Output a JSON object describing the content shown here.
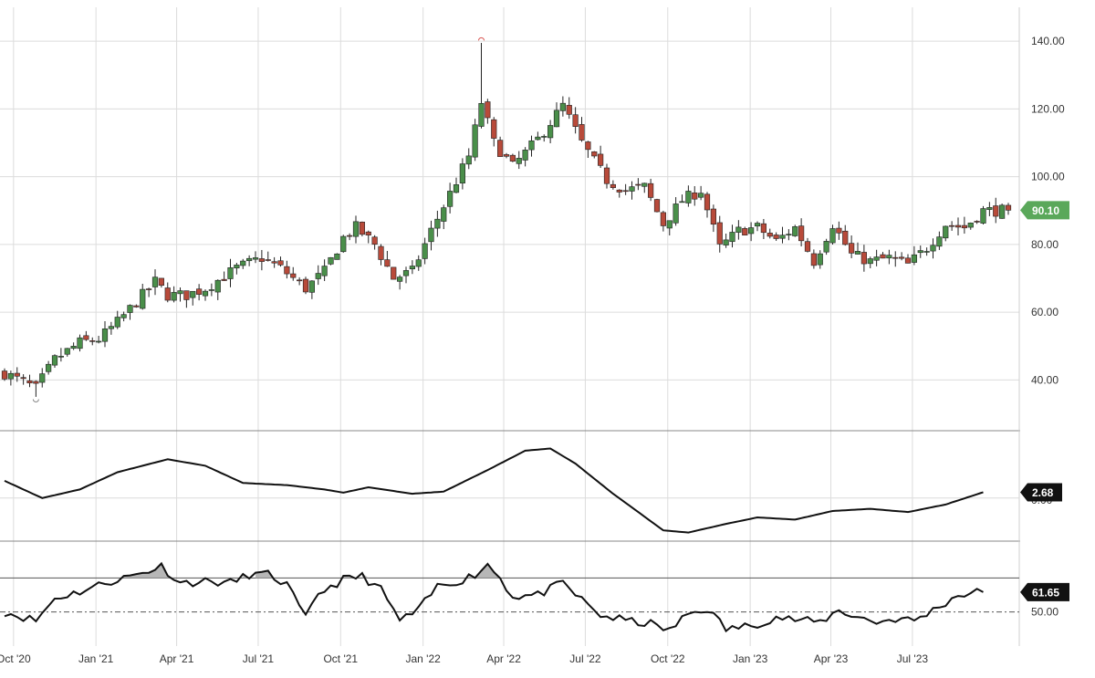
{
  "chart_data": [
    {
      "panel": "price",
      "type": "candlestick",
      "title": "",
      "xlabel": "",
      "ylabel": "",
      "ylim": [
        25,
        150
      ],
      "yticks": [
        40,
        60,
        80,
        100,
        120,
        140
      ],
      "ytick_labels": [
        "40.00",
        "60.00",
        "80.00",
        "100.00",
        "120.00",
        "140.00"
      ],
      "x_tick_labels": [
        "Oct '20",
        "Jan '21",
        "Apr '21",
        "Jul '21",
        "Oct '21",
        "Jan '22",
        "Apr '22",
        "Jul '22",
        "Oct '22",
        "Jan '23",
        "Apr '23",
        "Jul '23"
      ],
      "x_start": "2020-09-21",
      "x_end": "2023-10-16",
      "interval": "weekly",
      "grid": true,
      "current_value": 90.1,
      "current_label": "90.10",
      "colors": {
        "up": "#4a8f4a",
        "down": "#b84a3a",
        "wick": "#222222",
        "tag": "#5aa85a"
      },
      "anchors": [
        [
          "2020-09-21",
          42
        ],
        [
          "2020-10-26",
          37.5
        ],
        [
          "2020-11-16",
          46
        ],
        [
          "2020-12-14",
          51
        ],
        [
          "2021-01-04",
          52
        ],
        [
          "2021-01-25",
          57
        ],
        [
          "2021-02-15",
          63
        ],
        [
          "2021-03-08",
          69
        ],
        [
          "2021-03-22",
          65
        ],
        [
          "2021-04-12",
          65
        ],
        [
          "2021-05-03",
          67
        ],
        [
          "2021-06-07",
          73
        ],
        [
          "2021-07-05",
          76
        ],
        [
          "2021-07-26",
          73
        ],
        [
          "2021-08-23",
          67
        ],
        [
          "2021-09-13",
          72
        ],
        [
          "2021-10-04",
          82
        ],
        [
          "2021-10-18",
          85
        ],
        [
          "2021-11-08",
          80
        ],
        [
          "2021-11-29",
          70
        ],
        [
          "2021-12-20",
          72
        ],
        [
          "2022-01-10",
          84
        ],
        [
          "2022-01-31",
          95
        ],
        [
          "2022-02-21",
          106
        ],
        [
          "2022-03-07",
          122
        ],
        [
          "2022-03-21",
          110
        ],
        [
          "2022-04-11",
          103
        ],
        [
          "2022-05-09",
          111
        ],
        [
          "2022-06-06",
          121
        ],
        [
          "2022-06-27",
          110
        ],
        [
          "2022-07-25",
          99
        ],
        [
          "2022-08-15",
          96
        ],
        [
          "2022-09-05",
          97
        ],
        [
          "2022-09-26",
          86
        ],
        [
          "2022-10-17",
          93
        ],
        [
          "2022-11-07",
          96
        ],
        [
          "2022-11-28",
          79
        ],
        [
          "2022-12-19",
          84
        ],
        [
          "2023-01-09",
          85
        ],
        [
          "2023-01-30",
          81
        ],
        [
          "2023-02-20",
          85
        ],
        [
          "2023-03-13",
          75
        ],
        [
          "2023-04-03",
          86
        ],
        [
          "2023-04-24",
          77
        ],
        [
          "2023-05-15",
          75
        ],
        [
          "2023-06-05",
          76
        ],
        [
          "2023-06-26",
          74
        ],
        [
          "2023-07-17",
          79
        ],
        [
          "2023-08-07",
          86
        ],
        [
          "2023-08-28",
          85
        ],
        [
          "2023-09-18",
          90
        ]
      ]
    },
    {
      "panel": "indicator",
      "type": "line",
      "title": "",
      "ylabel": "",
      "ylim": [
        -20,
        30
      ],
      "ytick_labels": [
        "0.00"
      ],
      "current_value": 2.68,
      "current_label": "2.68",
      "color": "#111111",
      "anchors": [
        [
          "2020-09-21",
          8
        ],
        [
          "2020-11-02",
          0
        ],
        [
          "2020-12-14",
          4
        ],
        [
          "2021-01-25",
          12
        ],
        [
          "2021-03-22",
          18
        ],
        [
          "2021-05-03",
          15
        ],
        [
          "2021-06-14",
          7
        ],
        [
          "2021-08-02",
          6
        ],
        [
          "2021-09-13",
          4
        ],
        [
          "2021-10-04",
          2.5
        ],
        [
          "2021-11-01",
          5
        ],
        [
          "2021-12-20",
          2
        ],
        [
          "2022-01-24",
          3
        ],
        [
          "2022-03-14",
          13
        ],
        [
          "2022-04-25",
          22
        ],
        [
          "2022-05-23",
          23
        ],
        [
          "2022-06-20",
          16
        ],
        [
          "2022-08-01",
          2
        ],
        [
          "2022-09-26",
          -15
        ],
        [
          "2022-10-24",
          -16
        ],
        [
          "2022-12-05",
          -12
        ],
        [
          "2023-01-09",
          -9
        ],
        [
          "2023-02-20",
          -10
        ],
        [
          "2023-04-03",
          -6
        ],
        [
          "2023-05-15",
          -5
        ],
        [
          "2023-06-26",
          -6.5
        ],
        [
          "2023-08-07",
          -3
        ],
        [
          "2023-09-18",
          2.7
        ]
      ]
    },
    {
      "panel": "rsi",
      "type": "line",
      "title": "",
      "ylabel": "",
      "ylim": [
        30,
        90
      ],
      "ytick_labels": [
        "50.00"
      ],
      "overbought": 70,
      "midline": 50,
      "current_value": 61.65,
      "current_label": "61.65",
      "color": "#111111",
      "fill_color": "#aaaaaa",
      "anchors": [
        [
          "2020-09-21",
          50
        ],
        [
          "2020-10-26",
          45
        ],
        [
          "2020-11-16",
          58
        ],
        [
          "2020-12-14",
          62
        ],
        [
          "2021-01-11",
          67
        ],
        [
          "2021-02-01",
          70
        ],
        [
          "2021-02-22",
          73
        ],
        [
          "2021-03-15",
          77
        ],
        [
          "2021-04-05",
          67
        ],
        [
          "2021-05-03",
          68
        ],
        [
          "2021-05-31",
          67
        ],
        [
          "2021-06-21",
          72
        ],
        [
          "2021-07-12",
          72
        ],
        [
          "2021-08-02",
          66
        ],
        [
          "2021-08-23",
          46
        ],
        [
          "2021-09-06",
          61
        ],
        [
          "2021-10-04",
          69
        ],
        [
          "2021-10-25",
          71
        ],
        [
          "2021-11-15",
          63
        ],
        [
          "2021-12-06",
          45
        ],
        [
          "2021-12-27",
          51
        ],
        [
          "2022-01-17",
          65
        ],
        [
          "2022-02-14",
          69
        ],
        [
          "2022-02-28",
          72
        ],
        [
          "2022-03-14",
          78
        ],
        [
          "2022-03-28",
          70
        ],
        [
          "2022-04-11",
          59
        ],
        [
          "2022-05-09",
          60
        ],
        [
          "2022-06-06",
          67
        ],
        [
          "2022-06-27",
          57
        ],
        [
          "2022-07-18",
          48
        ],
        [
          "2022-08-15",
          45
        ],
        [
          "2022-09-12",
          43
        ],
        [
          "2022-10-03",
          39
        ],
        [
          "2022-10-24",
          49
        ],
        [
          "2022-11-14",
          52
        ],
        [
          "2022-12-05",
          40
        ],
        [
          "2023-01-02",
          42
        ],
        [
          "2023-01-30",
          47
        ],
        [
          "2023-02-27",
          45
        ],
        [
          "2023-03-20",
          44
        ],
        [
          "2023-04-10",
          51
        ],
        [
          "2023-05-01",
          47
        ],
        [
          "2023-05-22",
          44
        ],
        [
          "2023-06-12",
          46
        ],
        [
          "2023-07-03",
          45
        ],
        [
          "2023-07-24",
          51
        ],
        [
          "2023-08-21",
          60
        ],
        [
          "2023-09-18",
          62
        ]
      ]
    }
  ]
}
